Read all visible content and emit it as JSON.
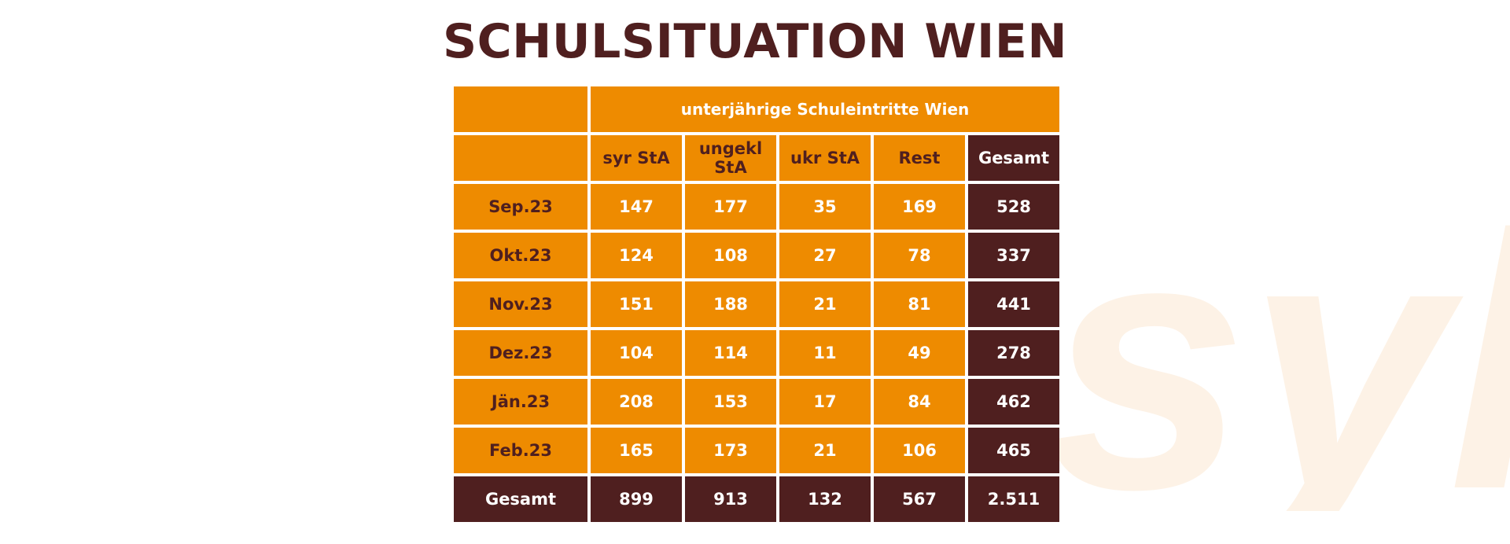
{
  "title": "SCHULSITUATION WIEN",
  "watermark_text": "syl",
  "colors": {
    "orange": "#ee8b00",
    "dark_brown": "#4f1f1f",
    "watermark": "#fdf2e6"
  },
  "chart_data": {
    "type": "table",
    "title": "SCHULSITUATION WIEN",
    "group_header": "unterjährige  Schuleintritte Wien",
    "columns": [
      "syr StA",
      "ungekl StA",
      "ukr StA",
      "Rest",
      "Gesamt"
    ],
    "rows": [
      {
        "label": "Sep.23",
        "values": [
          "147",
          "177",
          "35",
          "169",
          "528"
        ]
      },
      {
        "label": "Okt.23",
        "values": [
          "124",
          "108",
          "27",
          "78",
          "337"
        ]
      },
      {
        "label": "Nov.23",
        "values": [
          "151",
          "188",
          "21",
          "81",
          "441"
        ]
      },
      {
        "label": "Dez.23",
        "values": [
          "104",
          "114",
          "11",
          "49",
          "278"
        ]
      },
      {
        "label": "Jän.23",
        "values": [
          "208",
          "153",
          "17",
          "84",
          "462"
        ]
      },
      {
        "label": "Feb.23",
        "values": [
          "165",
          "173",
          "21",
          "106",
          "465"
        ]
      }
    ],
    "total_row": {
      "label": "Gesamt",
      "values": [
        "899",
        "913",
        "132",
        "567",
        "2.511"
      ]
    }
  }
}
